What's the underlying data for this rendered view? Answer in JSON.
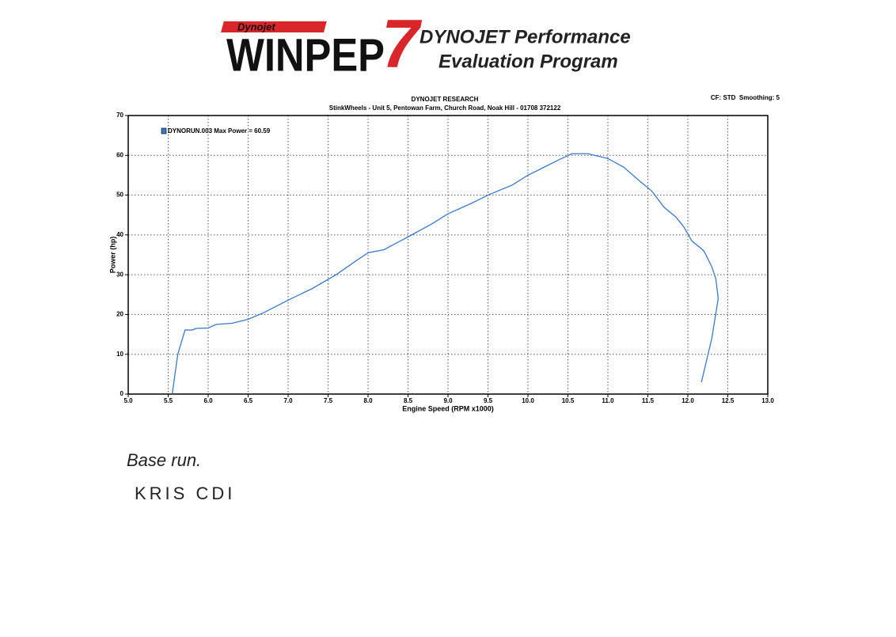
{
  "header": {
    "logo_small": "Dynojet",
    "logo_main": "WINPEP",
    "logo_num": "7",
    "line1": "DYNOJET Performance",
    "line2": "Evaluation Program"
  },
  "notes": [
    "Base run.",
    "KRIS CDI"
  ],
  "chart_data": {
    "type": "line",
    "title": "DYNOJET RESEARCH",
    "subtitle": "StinkWheels - Unit 5, Pentowan Farm, Church Road, Noak Hill - 01708 372122",
    "info": "CF: STD  Smoothing: 5",
    "x_label": "Engine Speed (RPM x1000)",
    "y_label": "Power (hp)",
    "x": [
      5.55,
      5.62,
      5.71,
      5.8,
      5.85,
      6.0,
      6.1,
      6.3,
      6.5,
      6.7,
      7.0,
      7.3,
      7.6,
      7.85,
      8.0,
      8.2,
      8.5,
      8.8,
      9.0,
      9.3,
      9.5,
      9.8,
      10.0,
      10.2,
      10.4,
      10.55,
      10.75,
      11.0,
      11.2,
      11.4,
      11.55,
      11.7,
      11.85,
      11.95,
      12.05,
      12.2,
      12.3,
      12.35,
      12.38,
      12.3,
      12.17
    ],
    "series": [
      {
        "name": "DYNORUN.003 Max Power = 60.59",
        "color": "#3b78c8",
        "values": [
          0,
          10,
          16.1,
          16.1,
          16.5,
          16.6,
          17.5,
          17.8,
          18.8,
          20.5,
          23.6,
          26.5,
          30,
          33.5,
          35.5,
          36.3,
          39.5,
          42.8,
          45.3,
          48,
          50,
          52.5,
          55,
          57,
          59,
          60.4,
          60.4,
          59.2,
          57,
          53.5,
          51,
          47,
          44.5,
          42,
          38.5,
          36,
          32,
          29,
          24,
          14,
          3
        ]
      }
    ],
    "xlim": [
      5,
      13
    ],
    "xticks": [
      {
        "value": 5,
        "label": "5.0"
      },
      5.5,
      {
        "value": 6,
        "label": "6.0"
      },
      6.5,
      {
        "value": 7,
        "label": "7.0"
      },
      7.5,
      {
        "value": 8,
        "label": "8.0"
      },
      8.5,
      {
        "value": 9,
        "label": "9.0"
      },
      9.5,
      {
        "value": 10,
        "label": "10.0"
      },
      10.5,
      {
        "value": 11,
        "label": "11.0"
      },
      11.5,
      {
        "value": 12,
        "label": "12.0"
      },
      12.5,
      {
        "value": 13,
        "label": "13.0"
      }
    ],
    "ylim": [
      0,
      70
    ],
    "yticks": [
      0,
      10,
      20,
      30,
      40,
      50,
      60,
      70
    ],
    "grid": true
  }
}
